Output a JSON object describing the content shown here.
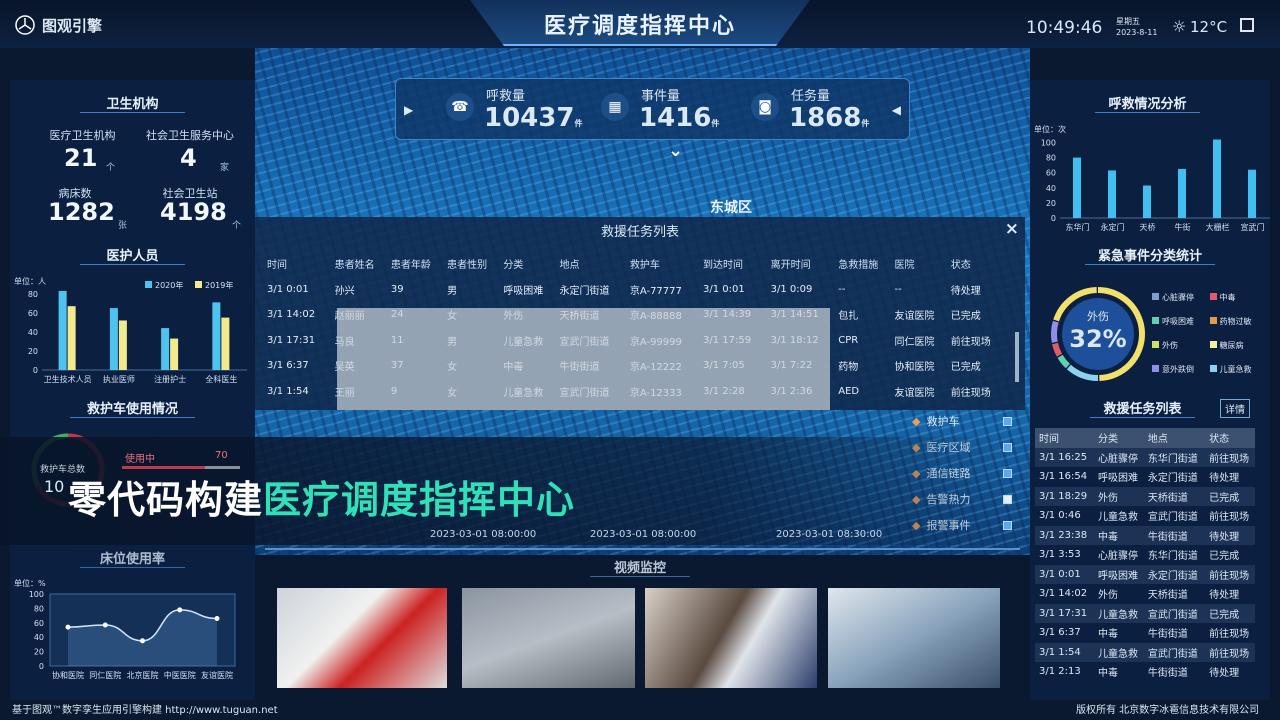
{
  "header": {
    "logo": "图观引擎",
    "title": "医疗调度指挥中心",
    "time": "10:49:46",
    "weekday": "星期五",
    "date": "2023-8-11",
    "weather": "12°C",
    "weather_icon": "sun-icon",
    "exit_icon": "exit-icon"
  },
  "left": {
    "institutions": {
      "title": "卫生机构",
      "items": [
        {
          "label": "医疗卫生机构",
          "value": "21",
          "unit": "个"
        },
        {
          "label": "社会卫生服务中心",
          "value": "4",
          "unit": "家"
        },
        {
          "label": "病床数",
          "value": "1282",
          "unit": "张"
        },
        {
          "label": "社会卫生站",
          "value": "4198",
          "unit": "个"
        }
      ]
    },
    "staff": {
      "title": "医护人员",
      "unit": "单位：人"
    },
    "ambulance": {
      "title": "救护车使用情况",
      "total_label": "救护车总数",
      "total_value": "10",
      "in_use_label": "使用中",
      "in_use_value": "70"
    },
    "beds": {
      "title": "床位使用率",
      "unit": "单位：%"
    }
  },
  "kpi": [
    {
      "label": "呼救量",
      "value": "10437",
      "unit": "件"
    },
    {
      "label": "事件量",
      "value": "1416",
      "unit": "件"
    },
    {
      "label": "任务量",
      "value": "1868",
      "unit": "件"
    }
  ],
  "map": {
    "district": "东城区",
    "timeline": [
      "2023-03-01 08:00:00",
      "2023-03-01 08:00:00",
      "2023-03-01 08:30:00"
    ],
    "layers": [
      {
        "label": "救护车",
        "checked": true
      },
      {
        "label": "医疗区域",
        "checked": true
      },
      {
        "label": "通信链路",
        "checked": true
      },
      {
        "label": "告警热力",
        "checked": false
      },
      {
        "label": "报警事件",
        "checked": true
      }
    ]
  },
  "modal": {
    "title": "救援任务列表",
    "close": "×",
    "columns": [
      "时间",
      "患者姓名",
      "患者年龄",
      "患者性别",
      "分类",
      "地点",
      "救护车",
      "到达时间",
      "离开时间",
      "急救措施",
      "医院",
      "状态"
    ],
    "rows": [
      [
        "3/1 0:01",
        "孙兴",
        "39",
        "男",
        "呼吸困难",
        "永定门街道",
        "京A-77777",
        "3/1 0:01",
        "3/1 0:09",
        "--",
        "--",
        "待处理"
      ],
      [
        "3/1 14:02",
        "赵丽丽",
        "24",
        "女",
        "外伤",
        "天桥街道",
        "京A-88888",
        "3/1 14:39",
        "3/1 14:51",
        "包扎",
        "友谊医院",
        "已完成"
      ],
      [
        "3/1 17:31",
        "马良",
        "11",
        "男",
        "儿童急救",
        "宣武门街道",
        "京A-99999",
        "3/1 17:59",
        "3/1 18:12",
        "CPR",
        "同仁医院",
        "前往现场"
      ],
      [
        "3/1 6:37",
        "吴英",
        "37",
        "女",
        "中毒",
        "牛街街道",
        "京A-12222",
        "3/1 7:05",
        "3/1 7:22",
        "药物",
        "协和医院",
        "已完成"
      ],
      [
        "3/1 1:54",
        "王丽",
        "9",
        "女",
        "儿童急救",
        "宣武门街道",
        "京A-12333",
        "3/1 2:28",
        "3/1 2:36",
        "AED",
        "友谊医院",
        "前往现场"
      ]
    ]
  },
  "caption": {
    "part1": "零代码构建",
    "part2": "医疗调度指挥中心"
  },
  "video": {
    "title": "视频监控"
  },
  "right": {
    "calls": {
      "title": "呼救情况分析",
      "unit": "单位：次"
    },
    "events": {
      "title": "紧急事件分类统计",
      "center_label": "外伤",
      "center_value": "32%",
      "legend": [
        {
          "label": "心脏骤停",
          "color": "#7f9fc9"
        },
        {
          "label": "中毒",
          "color": "#e05a6a"
        },
        {
          "label": "呼吸困难",
          "color": "#5fd1b0"
        },
        {
          "label": "药物过敏",
          "color": "#e59a4a"
        },
        {
          "label": "外伤",
          "color": "#c9e06a"
        },
        {
          "label": "糖尿病",
          "color": "#f3ef9a"
        },
        {
          "label": "意外跌倒",
          "color": "#8f8fe8"
        },
        {
          "label": "儿童急救",
          "color": "#8fd0f0"
        }
      ]
    },
    "tasks": {
      "title": "救援任务列表",
      "details": "详情",
      "columns": [
        "时间",
        "分类",
        "地点",
        "状态"
      ],
      "rows": [
        [
          "3/1 16:25",
          "心脏骤停",
          "东华门街道",
          "前往现场"
        ],
        [
          "3/1 16:54",
          "呼吸困难",
          "永定门街道",
          "待处理"
        ],
        [
          "3/1 18:29",
          "外伤",
          "天桥街道",
          "已完成"
        ],
        [
          "3/1 0:46",
          "儿童急救",
          "宣武门街道",
          "前往现场"
        ],
        [
          "3/1 23:38",
          "中毒",
          "牛街街道",
          "待处理"
        ],
        [
          "3/1 3:53",
          "心脏骤停",
          "东华门街道",
          "已完成"
        ],
        [
          "3/1 0:01",
          "呼吸困难",
          "永定门街道",
          "前往现场"
        ],
        [
          "3/1 14:02",
          "外伤",
          "天桥街道",
          "待处理"
        ],
        [
          "3/1 17:31",
          "儿童急救",
          "宣武门街道",
          "已完成"
        ],
        [
          "3/1 6:37",
          "中毒",
          "牛街街道",
          "前往现场"
        ],
        [
          "3/1 1:54",
          "儿童急救",
          "宣武门街道",
          "前往现场"
        ],
        [
          "3/1 2:13",
          "中毒",
          "牛街街道",
          "待处理"
        ]
      ]
    }
  },
  "footer": {
    "left": "基于图观™数字孪生应用引擎构建 http://www.tuguan.net",
    "right": "版权所有 北京数字冰雹信息技术有限公司"
  },
  "chart_data": [
    {
      "type": "bar",
      "title": "医护人员",
      "ylabel": "单位：人",
      "categories": [
        "卫生技术人员",
        "执业医师",
        "注册护士",
        "全科医生"
      ],
      "series": [
        {
          "name": "2020年",
          "values": [
            83,
            65,
            44,
            71
          ],
          "color": "#4fc3f0"
        },
        {
          "name": "2019年",
          "values": [
            67,
            52,
            33,
            55
          ],
          "color": "#f3ea8e"
        }
      ],
      "ylim": [
        0,
        80
      ],
      "yticks": [
        0,
        20,
        40,
        60,
        80
      ],
      "legend": "top-right"
    },
    {
      "type": "line",
      "title": "床位使用率",
      "ylabel": "单位：%",
      "categories": [
        "协和医院",
        "同仁医院",
        "北京医院",
        "中医医院",
        "友谊医院"
      ],
      "values": [
        54,
        57,
        35,
        78,
        66
      ],
      "ylim": [
        0,
        100
      ],
      "yticks": [
        0,
        20,
        40,
        60,
        80,
        100
      ]
    },
    {
      "type": "bar",
      "title": "呼救情况分析",
      "ylabel": "单位：次",
      "categories": [
        "东华门",
        "永定门",
        "天桥",
        "牛街",
        "大栅栏",
        "宣武门"
      ],
      "values": [
        80,
        63,
        43,
        65,
        104,
        64
      ],
      "ylim": [
        0,
        100
      ],
      "yticks": [
        0,
        20,
        40,
        60,
        80,
        100
      ]
    },
    {
      "type": "pie",
      "title": "紧急事件分类统计",
      "highlight": {
        "label": "外伤",
        "value": 32
      }
    }
  ]
}
